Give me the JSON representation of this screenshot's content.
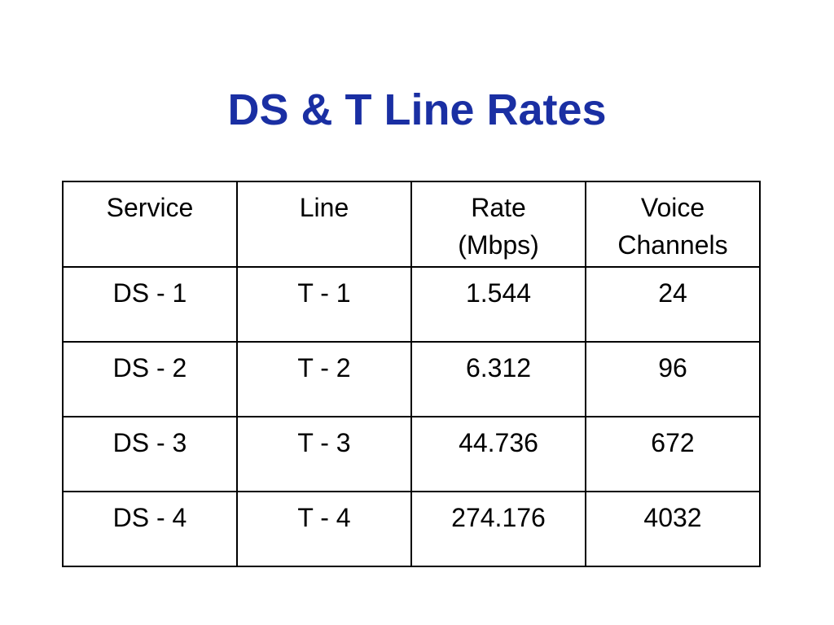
{
  "title": "DS & T Line Rates",
  "table": {
    "header": [
      [
        "Service"
      ],
      [
        "Line"
      ],
      [
        "Rate",
        "(Mbps)"
      ],
      [
        "Voice",
        "Channels"
      ]
    ],
    "rows": [
      [
        "DS - 1",
        "T - 1",
        "1.544",
        "24"
      ],
      [
        "DS - 2",
        "T - 2",
        "6.312",
        "96"
      ],
      [
        "DS - 3",
        "T - 3",
        "44.736",
        "672"
      ],
      [
        "DS - 4",
        "T - 4",
        "274.176",
        "4032"
      ]
    ]
  }
}
